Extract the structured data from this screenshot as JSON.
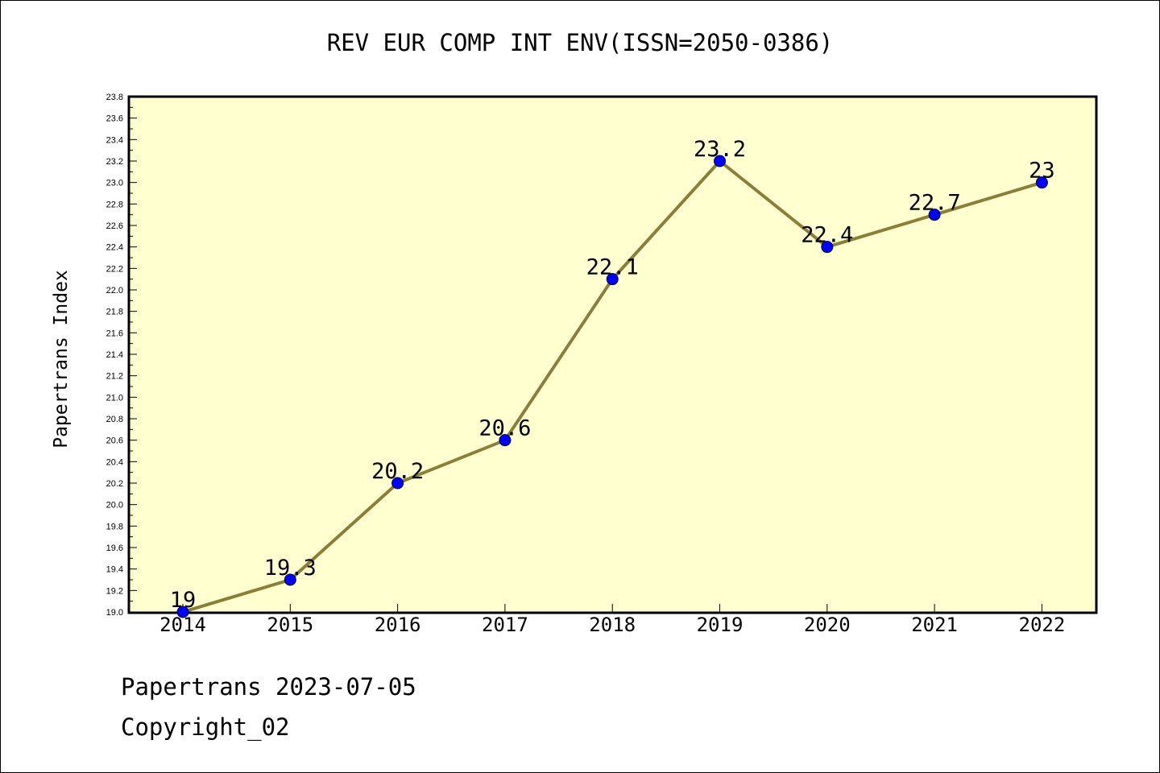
{
  "chart_data": {
    "type": "line",
    "title": "REV EUR COMP INT ENV(ISSN=2050-0386)",
    "xlabel": "",
    "ylabel": "Papertrans Index",
    "categories": [
      "2014",
      "2015",
      "2016",
      "2017",
      "2018",
      "2019",
      "2020",
      "2021",
      "2022"
    ],
    "series": [
      {
        "values": [
          19,
          19.3,
          20.2,
          20.6,
          22.1,
          23.2,
          22.4,
          22.7,
          23
        ]
      }
    ],
    "data_labels": [
      "19",
      "19.3",
      "20.2",
      "20.6",
      "22.1",
      "23.2",
      "22.4",
      "22.7",
      "23"
    ],
    "ylim": [
      19.0,
      23.8
    ],
    "yticks": [
      "19.0",
      "19.2",
      "19.4",
      "19.6",
      "19.8",
      "20.0",
      "20.2",
      "20.4",
      "20.6",
      "20.8",
      "21.0",
      "21.2",
      "21.4",
      "21.6",
      "21.8",
      "22.0",
      "22.2",
      "22.4",
      "22.6",
      "22.8",
      "23.0",
      "23.2",
      "23.4",
      "23.6",
      "23.8"
    ],
    "grid": false,
    "colors": {
      "plot_background": "#ffffd0",
      "line": "#8b7f38",
      "marker": "#0000ff"
    }
  },
  "footer": {
    "date_line": "Papertrans 2023-07-05",
    "copyright": "Copyright_02"
  }
}
